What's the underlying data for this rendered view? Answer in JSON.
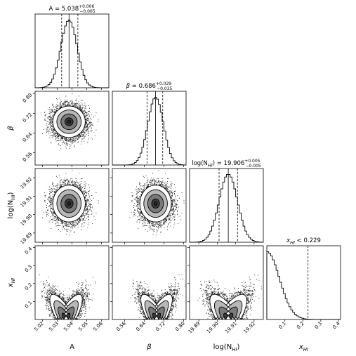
{
  "chart_data": {
    "type": "corner",
    "parameters": [
      {
        "id": "A",
        "label": "A",
        "range": [
          5.015,
          5.065
        ],
        "ticks": [
          5.02,
          5.03,
          5.04,
          5.05,
          5.06
        ],
        "tick_labels": [
          "5.02",
          "5.03",
          "5.04",
          "5.05",
          "5.06"
        ],
        "median": 5.038,
        "quantiles": [
          5.033,
          5.044
        ],
        "title": {
          "prefix": "A = ",
          "value": "5.038",
          "upper": "+0.006",
          "lower": "−0.005"
        },
        "show_x_label": true,
        "show_y_label": false
      },
      {
        "id": "beta",
        "label": "β",
        "range": [
          0.51,
          0.81
        ],
        "ticks": [
          0.56,
          0.64,
          0.72,
          0.8
        ],
        "tick_labels": [
          "0.56",
          "0.64",
          "0.72",
          "0.80"
        ],
        "median": 0.686,
        "quantiles": [
          0.651,
          0.715
        ],
        "title": {
          "prefix": "β = ",
          "value": "0.686",
          "upper": "+0.029",
          "lower": "−0.035"
        },
        "show_x_label": true,
        "show_y_label": true
      },
      {
        "id": "logNHI",
        "label_main": "log(N",
        "label_sub": "HI",
        "label_end": ")",
        "range": [
          19.885,
          19.925
        ],
        "ticks": [
          19.89,
          19.9,
          19.91,
          19.92
        ],
        "tick_labels": [
          "19.89",
          "19.90",
          "19.91",
          "19.92"
        ],
        "median": 19.906,
        "quantiles": [
          19.901,
          19.911
        ],
        "title": {
          "prefix": "log(N",
          "prefix_sub": "HI",
          "prefix_end": ") = ",
          "value": "19.906",
          "upper": "+0.005",
          "lower": "−0.005"
        },
        "show_x_label": true,
        "show_y_label": true
      },
      {
        "id": "xHI",
        "label_main": "x",
        "label_sub": "HI",
        "label_end": "",
        "range": [
          0.0,
          0.41
        ],
        "ticks": [
          0.1,
          0.2,
          0.3,
          0.4
        ],
        "tick_labels": [
          "0.1",
          "0.2",
          "0.3",
          "0.4"
        ],
        "y_ticks": [
          0.1,
          0.2,
          0.3,
          0.4
        ],
        "y_tick_labels": [
          "0.1",
          "0.2",
          "0.3",
          "0.4"
        ],
        "upper_limit": 0.229,
        "title": {
          "prefix": "x",
          "prefix_sub": "HI",
          "prefix_end": " < ",
          "value": "0.229"
        },
        "show_x_label": true,
        "show_y_label": true
      }
    ],
    "marginals": [
      {
        "param": "A",
        "shape": "gaussian",
        "center": 5.038,
        "sigma": 0.0055
      },
      {
        "param": "beta",
        "shape": "gaussian",
        "center": 0.686,
        "sigma": 0.032
      },
      {
        "param": "logNHI",
        "shape": "gaussian",
        "center": 19.906,
        "sigma": 0.005
      },
      {
        "param": "xHI",
        "shape": "half-gaussian",
        "center": 0.0,
        "sigma": 0.07
      }
    ],
    "joint": [
      {
        "x": "A",
        "y": "beta",
        "cx": 5.038,
        "cy": 0.686,
        "sx": 0.0055,
        "sy": 0.032,
        "rho": 0.0
      },
      {
        "x": "A",
        "y": "logNHI",
        "cx": 5.038,
        "cy": 19.906,
        "sx": 0.0055,
        "sy": 0.005,
        "rho": 0.0
      },
      {
        "x": "beta",
        "y": "logNHI",
        "cx": 0.686,
        "cy": 19.906,
        "sx": 0.032,
        "sy": 0.005,
        "rho": 0.0
      },
      {
        "x": "A",
        "y": "xHI",
        "cx": 5.036,
        "cy": 0.0,
        "sx": 0.0055,
        "sy": 0.07,
        "rho": 0.8
      },
      {
        "x": "beta",
        "y": "xHI",
        "cx": 0.69,
        "cy": 0.0,
        "sx": 0.032,
        "sy": 0.07,
        "rho": -0.8
      },
      {
        "x": "logNHI",
        "y": "xHI",
        "cx": 19.906,
        "cy": 0.0,
        "sx": 0.005,
        "sy": 0.07,
        "rho": -0.75
      }
    ],
    "contour_levels_sigma": [
      0.5,
      1.0,
      1.5,
      2.0
    ],
    "colors": {
      "ink": "#000000",
      "fill_dark": "#3a3a3a",
      "fill_mid": "#7a7a7a",
      "fill_light": "#b8b8b8",
      "fill_core": "#222222",
      "points": "#1a1a1a"
    }
  }
}
